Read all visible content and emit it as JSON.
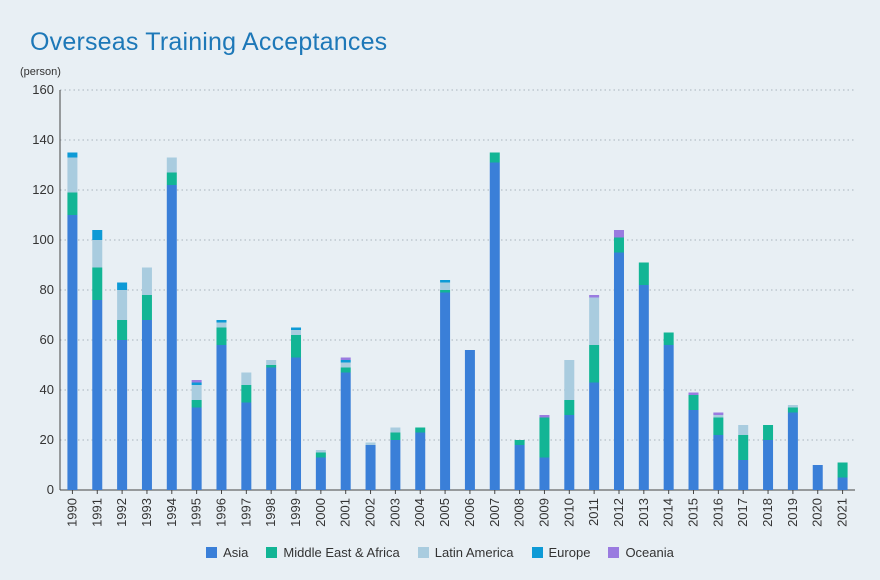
{
  "chart_data": {
    "type": "bar",
    "stacked": true,
    "title": "Overseas Training Acceptances",
    "ylabel": "(person)",
    "xlabel": "",
    "ylim": [
      0,
      160
    ],
    "yticks": [
      "0",
      "20",
      "40",
      "60",
      "80",
      "100",
      "120",
      "140",
      "160"
    ],
    "grid": true,
    "legend_position": "bottom",
    "categories": [
      "1990",
      "1991",
      "1992",
      "1993",
      "1994",
      "1995",
      "1996",
      "1997",
      "1998",
      "1999",
      "2000",
      "2001",
      "2002",
      "2003",
      "2004",
      "2005",
      "2006",
      "2007",
      "2008",
      "2009",
      "2010",
      "2011",
      "2012",
      "2013",
      "2014",
      "2015",
      "2016",
      "2017",
      "2018",
      "2019",
      "2020",
      "2021"
    ],
    "series": [
      {
        "name": "Asia",
        "color": "#3a7fd8",
        "values": [
          110,
          76,
          60,
          68,
          122,
          33,
          58,
          35,
          49,
          53,
          13,
          47,
          18,
          20,
          23,
          79,
          56,
          131,
          18,
          13,
          30,
          43,
          95,
          82,
          58,
          32,
          22,
          12,
          20,
          31,
          10,
          5
        ]
      },
      {
        "name": "Middle East & Africa",
        "color": "#12b595",
        "values": [
          9,
          13,
          8,
          10,
          5,
          3,
          7,
          7,
          1,
          9,
          2,
          2,
          0,
          3,
          2,
          1,
          0,
          4,
          2,
          16,
          6,
          15,
          6,
          9,
          5,
          6,
          7,
          10,
          6,
          2,
          0,
          6
        ]
      },
      {
        "name": "Latin America",
        "color": "#a9ccdf",
        "values": [
          14,
          11,
          12,
          11,
          6,
          6,
          2,
          5,
          2,
          2,
          1,
          2,
          1,
          2,
          0,
          3,
          0,
          0,
          0,
          0,
          16,
          19,
          0,
          0,
          0,
          0,
          1,
          4,
          0,
          1,
          0,
          0
        ]
      },
      {
        "name": "Europe",
        "color": "#0d9ad6",
        "values": [
          2,
          4,
          3,
          0,
          0,
          1,
          1,
          0,
          0,
          1,
          0,
          1,
          0,
          0,
          0,
          1,
          0,
          0,
          0,
          0,
          0,
          0,
          0,
          0,
          0,
          0,
          0,
          0,
          0,
          0,
          0,
          0
        ]
      },
      {
        "name": "Oceania",
        "color": "#9a7be0",
        "values": [
          0,
          0,
          0,
          0,
          0,
          1,
          0,
          0,
          0,
          0,
          0,
          1,
          0,
          0,
          0,
          0,
          0,
          0,
          0,
          1,
          0,
          1,
          3,
          0,
          0,
          1,
          1,
          0,
          0,
          0,
          0,
          0
        ]
      }
    ]
  }
}
